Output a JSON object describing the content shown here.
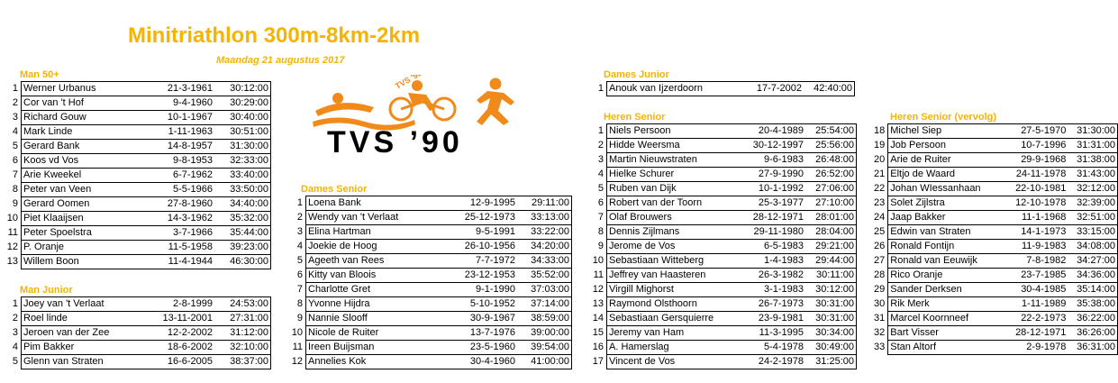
{
  "header": {
    "title": "Minitriathlon 300m-8km-2km",
    "subtitle": "Maandag 21 augustus 2017"
  },
  "logo": {
    "text": "TVS ’90",
    "small_text": "TVS '90",
    "color": "#f08a1a"
  },
  "accent_color": "#f6b300",
  "sections": [
    {
      "id": "man50",
      "title": "Man 50+",
      "rows": [
        [
          "1",
          "Werner Urbanus",
          "21-3-1961",
          "30:12:00"
        ],
        [
          "2",
          "Cor van 't Hof",
          "9-4-1960",
          "30:29:00"
        ],
        [
          "3",
          "Richard Gouw",
          "10-1-1967",
          "30:40:00"
        ],
        [
          "4",
          "Mark Linde",
          "1-11-1963",
          "30:51:00"
        ],
        [
          "5",
          "Gerard Bank",
          "14-8-1957",
          "31:30:00"
        ],
        [
          "6",
          "Koos vd Vos",
          "9-8-1953",
          "32:33:00"
        ],
        [
          "7",
          "Arie Kweekel",
          "6-7-1962",
          "33:40:00"
        ],
        [
          "8",
          "Peter van Veen",
          "5-5-1966",
          "33:50:00"
        ],
        [
          "9",
          "Gerard Oomen",
          "27-8-1960",
          "34:40:00"
        ],
        [
          "10",
          "Piet Klaaijsen",
          "14-3-1962",
          "35:32:00"
        ],
        [
          "11",
          "Peter Spoelstra",
          "3-7-1966",
          "35:44:00"
        ],
        [
          "12",
          "P. Oranje",
          "11-5-1958",
          "39:23:00"
        ],
        [
          "13",
          "Willem Boon",
          "11-4-1944",
          "46:30:00"
        ]
      ]
    },
    {
      "id": "manjunior",
      "title": "Man Junior",
      "rows": [
        [
          "1",
          "Joey van 't Verlaat",
          "2-8-1999",
          "24:53:00"
        ],
        [
          "2",
          "Roel linde",
          "13-11-2001",
          "27:31:00"
        ],
        [
          "3",
          "Jeroen van der Zee",
          "12-2-2002",
          "31:12:00"
        ],
        [
          "4",
          "Pim Bakker",
          "18-6-2002",
          "32:10:00"
        ],
        [
          "5",
          "Glenn van Straten",
          "16-6-2005",
          "38:37:00"
        ]
      ]
    },
    {
      "id": "damessenior",
      "title": "Dames Senior",
      "rows": [
        [
          "1",
          "Loena Bank",
          "12-9-1995",
          "29:11:00"
        ],
        [
          "2",
          "Wendy van 't Verlaat",
          "25-12-1973",
          "33:13:00"
        ],
        [
          "3",
          "Elina Hartman",
          "9-5-1991",
          "33:22:00"
        ],
        [
          "4",
          "Joekie de Hoog",
          "26-10-1956",
          "34:20:00"
        ],
        [
          "5",
          "Ageeth van Rees",
          "7-7-1972",
          "34:33:00"
        ],
        [
          "6",
          "Kitty van Bloois",
          "23-12-1953",
          "35:52:00"
        ],
        [
          "7",
          "Charlotte Gret",
          "9-1-1990",
          "37:03:00"
        ],
        [
          "8",
          "Yvonne Hijdra",
          "5-10-1952",
          "37:14:00"
        ],
        [
          "9",
          "Nannie Slooff",
          "30-9-1967",
          "38:59:00"
        ],
        [
          "10",
          "Nicole de Ruiter",
          "13-7-1976",
          "39:00:00"
        ],
        [
          "11",
          "Ireen Buijsman",
          "23-5-1960",
          "39:54:00"
        ],
        [
          "12",
          "Annelies Kok",
          "30-4-1960",
          "41:00:00"
        ]
      ]
    },
    {
      "id": "damesjunior",
      "title": "Dames Junior",
      "rows": [
        [
          "1",
          "Anouk van Ijzerdoorn",
          "17-7-2002",
          "42:40:00"
        ]
      ]
    },
    {
      "id": "herensenior",
      "title": "Heren Senior",
      "rows": [
        [
          "1",
          "Niels Persoon",
          "20-4-1989",
          "25:54:00"
        ],
        [
          "2",
          "Hidde Weersma",
          "30-12-1997",
          "25:56:00"
        ],
        [
          "3",
          "Martin Nieuwstraten",
          "9-6-1983",
          "26:48:00"
        ],
        [
          "4",
          "Hielke Schurer",
          "27-9-1990",
          "26:52:00"
        ],
        [
          "5",
          "Ruben van Dijk",
          "10-1-1992",
          "27:06:00"
        ],
        [
          "6",
          "Robert van der Toorn",
          "25-3-1977",
          "27:10:00"
        ],
        [
          "7",
          "Olaf Brouwers",
          "28-12-1971",
          "28:01:00"
        ],
        [
          "8",
          "Dennis Zijlmans",
          "29-11-1980",
          "28:04:00"
        ],
        [
          "9",
          "Jerome de Vos",
          "6-5-1983",
          "29:21:00"
        ],
        [
          "10",
          "Sebastiaan Witteberg",
          "1-4-1983",
          "29:44:00"
        ],
        [
          "11",
          "Jeffrey van Haasteren",
          "26-3-1982",
          "30:11:00"
        ],
        [
          "12",
          "Virgill Mighorst",
          "3-1-1983",
          "30:12:00"
        ],
        [
          "13",
          "Raymond Olsthoorn",
          "26-7-1973",
          "30:31:00"
        ],
        [
          "14",
          "Sebastiaan Gersquierre",
          "23-9-1981",
          "30:31:00"
        ],
        [
          "15",
          "Jeremy van Ham",
          "11-3-1995",
          "30:34:00"
        ],
        [
          "16",
          "A. Hamerslag",
          "5-4-1978",
          "30:49:00"
        ],
        [
          "17",
          "Vincent de Vos",
          "24-2-1978",
          "31:25:00"
        ]
      ]
    },
    {
      "id": "herenseniorvervolg",
      "title": "Heren Senior (vervolg)",
      "rows": [
        [
          "18",
          "Michel Siep",
          "27-5-1970",
          "31:30:00"
        ],
        [
          "19",
          "Job Persoon",
          "10-7-1996",
          "31:31:00"
        ],
        [
          "20",
          "Arie de Ruiter",
          "29-9-1968",
          "31:38:00"
        ],
        [
          "21",
          "Eltjo de Waard",
          "24-11-1978",
          "31:43:00"
        ],
        [
          "22",
          "Johan WIessanhaan",
          "22-10-1981",
          "32:12:00"
        ],
        [
          "23",
          "Solet Zijlstra",
          "12-10-1978",
          "32:39:00"
        ],
        [
          "24",
          "Jaap Bakker",
          "11-1-1968",
          "32:51:00"
        ],
        [
          "25",
          "Edwin van Straten",
          "14-1-1973",
          "33:15:00"
        ],
        [
          "26",
          "Ronald Fontijn",
          "11-9-1983",
          "34:08:00"
        ],
        [
          "27",
          "Ronald van Eeuwijk",
          "7-8-1982",
          "34:27:00"
        ],
        [
          "28",
          "Rico Oranje",
          "23-7-1985",
          "34:36:00"
        ],
        [
          "29",
          "Sander Derksen",
          "30-4-1985",
          "35:14:00"
        ],
        [
          "30",
          "Rik Merk",
          "1-11-1989",
          "35:38:00"
        ],
        [
          "31",
          "Marcel Koornneef",
          "22-2-1973",
          "36:22:00"
        ],
        [
          "32",
          "Bart Visser",
          "28-12-1971",
          "36:26:00"
        ],
        [
          "33",
          "Stan Altorf",
          "2-9-1978",
          "36:31:00"
        ]
      ]
    }
  ]
}
